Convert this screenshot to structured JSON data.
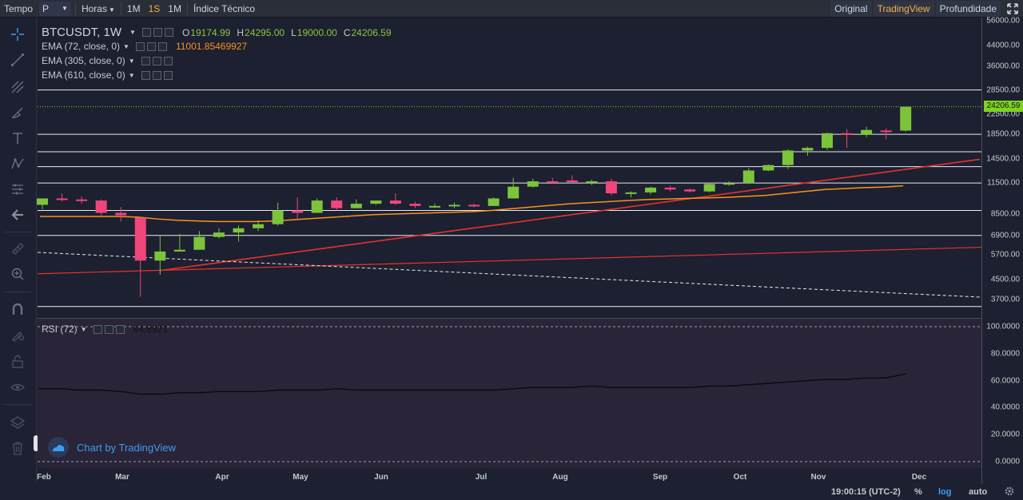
{
  "toolbar": {
    "tempo_label": "Tempo",
    "style_select": "P",
    "hours_select": "Horas",
    "timeframes": [
      "1M",
      "1S",
      "1M"
    ],
    "indicators_label": "Índice Técnico",
    "views": [
      "Original",
      "TradingView",
      "Profundidade"
    ],
    "active_view": "TradingView",
    "accent": "#f5b041"
  },
  "legend": {
    "symbol": "BTCUSDT, 1W",
    "open_label": "O",
    "open": "19174.99",
    "high_label": "H",
    "high": "24295.00",
    "low_label": "L",
    "low": "19000.00",
    "close_label": "C",
    "close": "24206.59",
    "ema1": "EMA (72, close, 0)",
    "ema1_value": "11001.85469927",
    "ema2": "EMA (305, close, 0)",
    "ema3": "EMA (610, close, 0)",
    "rsi": "RSI (72)",
    "rsi_value": "64.8921"
  },
  "watermark": "Chart by TradingView",
  "price_axis": [
    "56000.00",
    "44000.00",
    "36000.00",
    "28500.00",
    "22500.00",
    "18500.00",
    "14500.00",
    "11500.00",
    "8500.00",
    "6900.00",
    "5700.00",
    "4500.00",
    "3700.00"
  ],
  "last_price": "24206.59",
  "rsi_axis": [
    "100.0000",
    "80.0000",
    "60.0000",
    "40.0000",
    "20.0000",
    "0.0000"
  ],
  "time_axis": [
    "Feb",
    "Mar",
    "Apr",
    "May",
    "Jun",
    "Jul",
    "Aug",
    "Sep",
    "Oct",
    "Nov",
    "Dec"
  ],
  "status": {
    "clock": "19:00:15 (UTC-2)",
    "percent": "%",
    "log": "log",
    "auto": "auto"
  },
  "colors": {
    "up": "#7cc43a",
    "down": "#f0457a",
    "ema": "#f7931e",
    "trend": "#e8312f",
    "rsi_line": "#0b0d14",
    "rsi_bg": "#2a2438"
  },
  "chart_data": {
    "type": "candlestick",
    "interval": "1W",
    "scale": "log",
    "series": [
      {
        "o": 9300,
        "h": 9900,
        "l": 8900,
        "c": 9900
      },
      {
        "o": 9900,
        "h": 10400,
        "l": 9600,
        "c": 9800
      },
      {
        "o": 9800,
        "h": 10100,
        "l": 9400,
        "c": 9700
      },
      {
        "o": 9700,
        "h": 9800,
        "l": 8400,
        "c": 8600
      },
      {
        "o": 8600,
        "h": 9100,
        "l": 7900,
        "c": 8400
      },
      {
        "o": 8200,
        "h": 8300,
        "l": 3800,
        "c": 5400
      },
      {
        "o": 5400,
        "h": 6900,
        "l": 4700,
        "c": 5900
      },
      {
        "o": 5900,
        "h": 7000,
        "l": 5900,
        "c": 6000
      },
      {
        "o": 6000,
        "h": 7200,
        "l": 6000,
        "c": 6800
      },
      {
        "o": 6800,
        "h": 7400,
        "l": 6700,
        "c": 7100
      },
      {
        "o": 7100,
        "h": 7600,
        "l": 6500,
        "c": 7400
      },
      {
        "o": 7400,
        "h": 8000,
        "l": 7200,
        "c": 7700
      },
      {
        "o": 7700,
        "h": 9500,
        "l": 7600,
        "c": 8800
      },
      {
        "o": 8800,
        "h": 10000,
        "l": 8000,
        "c": 8600
      },
      {
        "o": 8600,
        "h": 9900,
        "l": 8600,
        "c": 9700
      },
      {
        "o": 9700,
        "h": 10000,
        "l": 8800,
        "c": 9000
      },
      {
        "o": 9000,
        "h": 9800,
        "l": 9000,
        "c": 9400
      },
      {
        "o": 9400,
        "h": 9700,
        "l": 9300,
        "c": 9700
      },
      {
        "o": 9700,
        "h": 10400,
        "l": 9300,
        "c": 9400
      },
      {
        "o": 9400,
        "h": 9600,
        "l": 9000,
        "c": 9200
      },
      {
        "o": 9200,
        "h": 9400,
        "l": 9000,
        "c": 9200
      },
      {
        "o": 9200,
        "h": 9500,
        "l": 9000,
        "c": 9300
      },
      {
        "o": 9300,
        "h": 9400,
        "l": 9100,
        "c": 9200
      },
      {
        "o": 9200,
        "h": 10000,
        "l": 9200,
        "c": 9900
      },
      {
        "o": 9900,
        "h": 12100,
        "l": 9900,
        "c": 11100
      },
      {
        "o": 11100,
        "h": 12000,
        "l": 11000,
        "c": 11700
      },
      {
        "o": 11700,
        "h": 12100,
        "l": 11400,
        "c": 11600
      },
      {
        "o": 11800,
        "h": 12400,
        "l": 11600,
        "c": 11600
      },
      {
        "o": 11600,
        "h": 11900,
        "l": 11300,
        "c": 11700
      },
      {
        "o": 11700,
        "h": 12000,
        "l": 10200,
        "c": 10400
      },
      {
        "o": 10400,
        "h": 10600,
        "l": 10000,
        "c": 10500
      },
      {
        "o": 10500,
        "h": 11100,
        "l": 10300,
        "c": 11000
      },
      {
        "o": 11000,
        "h": 11200,
        "l": 10600,
        "c": 10800
      },
      {
        "o": 10800,
        "h": 10900,
        "l": 10500,
        "c": 10600
      },
      {
        "o": 10600,
        "h": 11500,
        "l": 10500,
        "c": 11400
      },
      {
        "o": 11400,
        "h": 11700,
        "l": 11200,
        "c": 11500
      },
      {
        "o": 11500,
        "h": 13300,
        "l": 11400,
        "c": 13000
      },
      {
        "o": 13000,
        "h": 13800,
        "l": 12900,
        "c": 13700
      },
      {
        "o": 13700,
        "h": 16000,
        "l": 13200,
        "c": 15800
      },
      {
        "o": 15800,
        "h": 16400,
        "l": 15000,
        "c": 16200
      },
      {
        "o": 16200,
        "h": 18800,
        "l": 15900,
        "c": 18700
      },
      {
        "o": 18700,
        "h": 19500,
        "l": 16200,
        "c": 18400
      },
      {
        "o": 18400,
        "h": 19900,
        "l": 18000,
        "c": 19300
      },
      {
        "o": 19200,
        "h": 19600,
        "l": 17600,
        "c": 19100
      },
      {
        "o": 19174.99,
        "h": 24295,
        "l": 19000,
        "c": 24206.59
      }
    ],
    "ema72": [
      8300,
      8300,
      8300,
      8300,
      8300,
      8250,
      8100,
      8000,
      7950,
      7900,
      7900,
      7900,
      7950,
      8050,
      8150,
      8250,
      8350,
      8450,
      8500,
      8550,
      8600,
      8650,
      8700,
      8800,
      8950,
      9100,
      9250,
      9400,
      9500,
      9600,
      9700,
      9800,
      9850,
      9900,
      9950,
      10000,
      10100,
      10200,
      10400,
      10600,
      10800,
      10900,
      11000,
      11050,
      11200
    ],
    "rsi": [
      54,
      54,
      53,
      53,
      52,
      50,
      50,
      51,
      51,
      52,
      52,
      52,
      53,
      53,
      53,
      54,
      53,
      53,
      53,
      53,
      53,
      53,
      53,
      53,
      54,
      55,
      55,
      55,
      56,
      55,
      55,
      55,
      55,
      55,
      56,
      56,
      57,
      58,
      59,
      60,
      61,
      61,
      62,
      62,
      65
    ]
  }
}
